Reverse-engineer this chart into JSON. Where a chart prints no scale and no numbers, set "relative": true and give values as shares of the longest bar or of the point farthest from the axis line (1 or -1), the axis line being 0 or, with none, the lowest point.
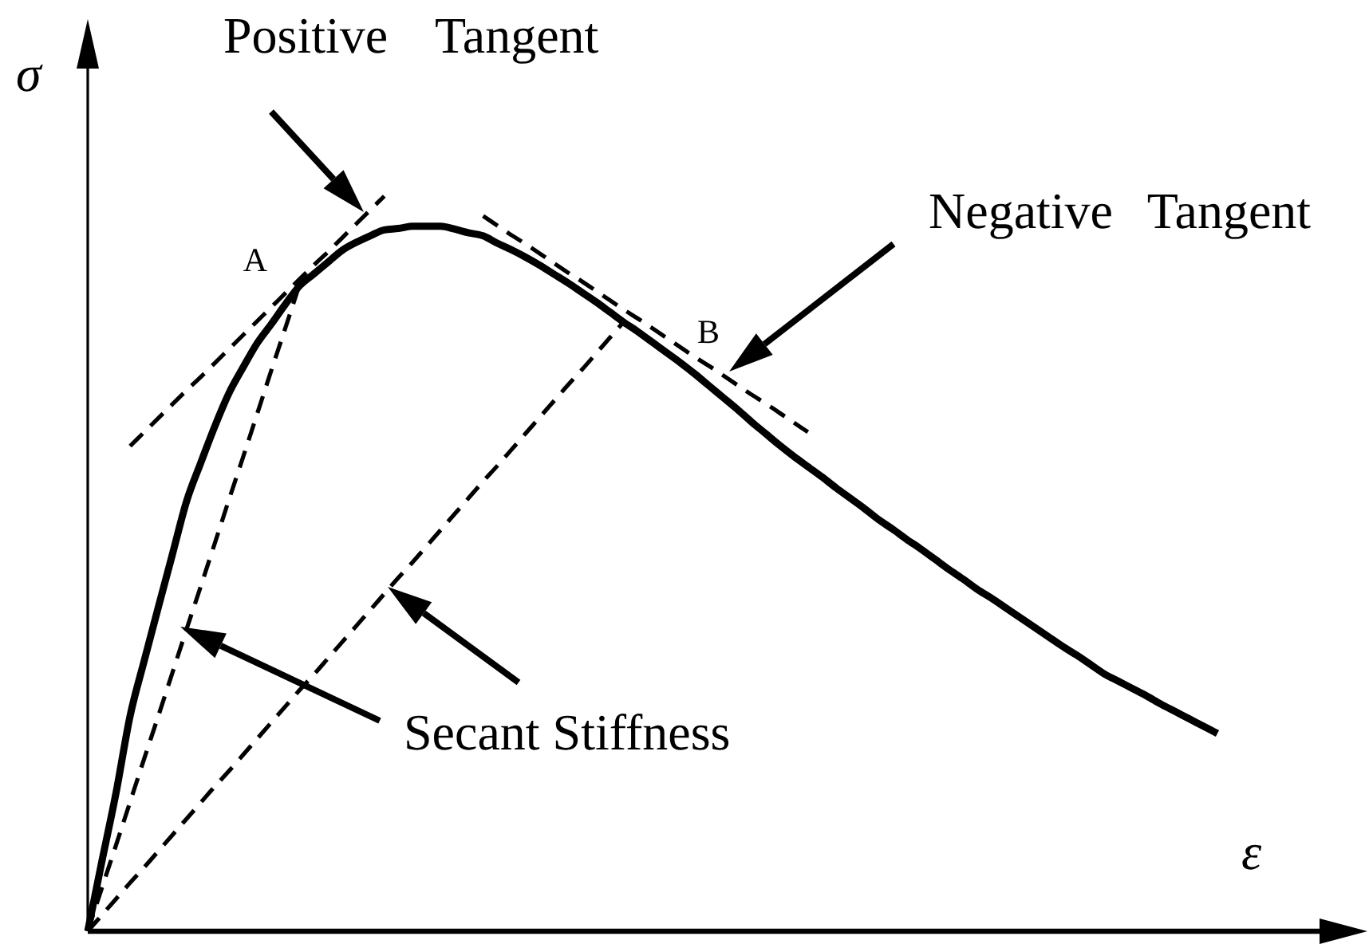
{
  "chart_data": {
    "type": "line",
    "relative": true,
    "xlabel": "ε",
    "ylabel": "σ",
    "categories": [
      null,
      null,
      null,
      null,
      null,
      null,
      null,
      null,
      null,
      null,
      null,
      null,
      null,
      null,
      null,
      null,
      null,
      null,
      null,
      null,
      null,
      null,
      null,
      null,
      null,
      null,
      null,
      null,
      null,
      null,
      null,
      null,
      null,
      null,
      null,
      null,
      null,
      null,
      null,
      null,
      null,
      null,
      null,
      null,
      null,
      null,
      null,
      null,
      null,
      null,
      null,
      null,
      null,
      null,
      null,
      null,
      null,
      null,
      null,
      null,
      null,
      null,
      null,
      null,
      null,
      null,
      null,
      null,
      null,
      null,
      null,
      null,
      null,
      null,
      null,
      null,
      null,
      null,
      null,
      null,
      null
    ],
    "series": [
      {
        "color": "#000000",
        "line_style": "solid",
        "values": [
          0,
          0.095,
          0.188,
          0.293,
          0.368,
          0.441,
          0.513,
          0.585,
          0.637,
          0.687,
          0.732,
          0.767,
          0.8,
          0.826,
          0.853,
          0.878,
          0.894,
          0.91,
          0.926,
          0.937,
          0.946,
          0.954,
          0.956,
          0.959,
          0.959,
          0.959,
          0.955,
          0.95,
          0.946,
          0.936,
          0.927,
          0.917,
          0.906,
          0.894,
          0.882,
          0.869,
          0.856,
          0.842,
          0.828,
          0.815,
          0.801,
          0.787,
          0.773,
          0.758,
          0.742,
          0.726,
          0.71,
          0.693,
          0.677,
          0.661,
          0.646,
          0.632,
          0.618,
          0.603,
          0.589,
          0.575,
          0.56,
          0.547,
          0.533,
          0.52,
          0.506,
          0.492,
          0.479,
          0.465,
          0.453,
          0.44,
          0.427,
          0.414,
          0.401,
          0.388,
          0.376,
          0.363,
          0.35,
          0.34,
          0.33,
          0.32,
          0.309,
          0.299,
          0.289,
          0.279,
          0.269
        ]
      },
      {
        "color": "#000000",
        "line_style": "dashed",
        "values": [
          null,
          null,
          null,
          0.66,
          0.679,
          0.698,
          0.717,
          0.736,
          0.754,
          0.773,
          0.792,
          0.811,
          0.83,
          0.849,
          0.868,
          0.887,
          0.906,
          0.924,
          0.943,
          0.962,
          0.981,
          1.0,
          null,
          null,
          null,
          null,
          null,
          null,
          null,
          null,
          null,
          null,
          null,
          null,
          null,
          null,
          null,
          null,
          null,
          null,
          null,
          null,
          null,
          null,
          null,
          null,
          null,
          null,
          null,
          null,
          null,
          null,
          null,
          null,
          null,
          null,
          null,
          null,
          null,
          null,
          null,
          null,
          null,
          null,
          null,
          null,
          null,
          null,
          null,
          null,
          null,
          null,
          null,
          null,
          null,
          null,
          null,
          null,
          null,
          null,
          null
        ]
      },
      {
        "color": "#000000",
        "line_style": "dashed",
        "values": [
          null,
          null,
          null,
          null,
          null,
          null,
          null,
          null,
          null,
          null,
          null,
          null,
          null,
          null,
          null,
          null,
          null,
          null,
          null,
          null,
          null,
          null,
          null,
          null,
          null,
          null,
          null,
          null,
          0.973,
          0.96,
          0.947,
          0.935,
          0.922,
          0.909,
          0.896,
          0.884,
          0.871,
          0.858,
          0.845,
          0.833,
          0.82,
          0.807,
          0.794,
          0.781,
          0.769,
          0.756,
          0.743,
          0.73,
          0.718,
          0.705,
          0.692,
          0.679,
          null,
          null,
          null,
          null,
          null,
          null,
          null,
          null,
          null,
          null,
          null,
          null,
          null,
          null,
          null,
          null,
          null,
          null,
          null,
          null,
          null,
          null,
          null,
          null,
          null,
          null,
          null,
          null,
          null
        ]
      },
      {
        "color": "#000000",
        "line_style": "dashed",
        "values": [
          0,
          0.059,
          0.117,
          0.176,
          0.235,
          0.293,
          0.352,
          0.411,
          0.469,
          0.528,
          0.587,
          0.645,
          0.704,
          0.763,
          0.821,
          0.88,
          null,
          null,
          null,
          null,
          null,
          null,
          null,
          null,
          null,
          null,
          null,
          null,
          null,
          null,
          null,
          null,
          null,
          null,
          null,
          null,
          null,
          null,
          null,
          null,
          null,
          null,
          null,
          null,
          null,
          null,
          null,
          null,
          null,
          null,
          null,
          null,
          null,
          null,
          null,
          null,
          null,
          null,
          null,
          null,
          null,
          null,
          null,
          null,
          null,
          null,
          null,
          null,
          null,
          null,
          null,
          null,
          null,
          null,
          null,
          null,
          null,
          null,
          null,
          null,
          null
        ]
      },
      {
        "color": "#000000",
        "line_style": "dashed",
        "values": [
          0,
          0.022,
          0.044,
          0.066,
          0.087,
          0.109,
          0.131,
          0.153,
          0.175,
          0.197,
          0.218,
          0.24,
          0.262,
          0.284,
          0.306,
          0.328,
          0.349,
          0.371,
          0.393,
          0.415,
          0.437,
          0.459,
          0.481,
          0.502,
          0.524,
          0.546,
          0.568,
          0.59,
          0.612,
          0.633,
          0.655,
          0.677,
          0.699,
          0.721,
          0.743,
          0.764,
          0.786,
          0.808,
          0.83,
          null,
          null,
          null,
          null,
          null,
          null,
          null,
          null,
          null,
          null,
          null,
          null,
          null,
          null,
          null,
          null,
          null,
          null,
          null,
          null,
          null,
          null,
          null,
          null,
          null,
          null,
          null,
          null,
          null,
          null,
          null,
          null,
          null,
          null,
          null,
          null,
          null,
          null,
          null,
          null,
          null,
          null
        ]
      }
    ],
    "annotations": [
      "Positive Tangent",
      "Negative Tangent",
      "Secant Stiffness",
      "A",
      "B"
    ]
  }
}
